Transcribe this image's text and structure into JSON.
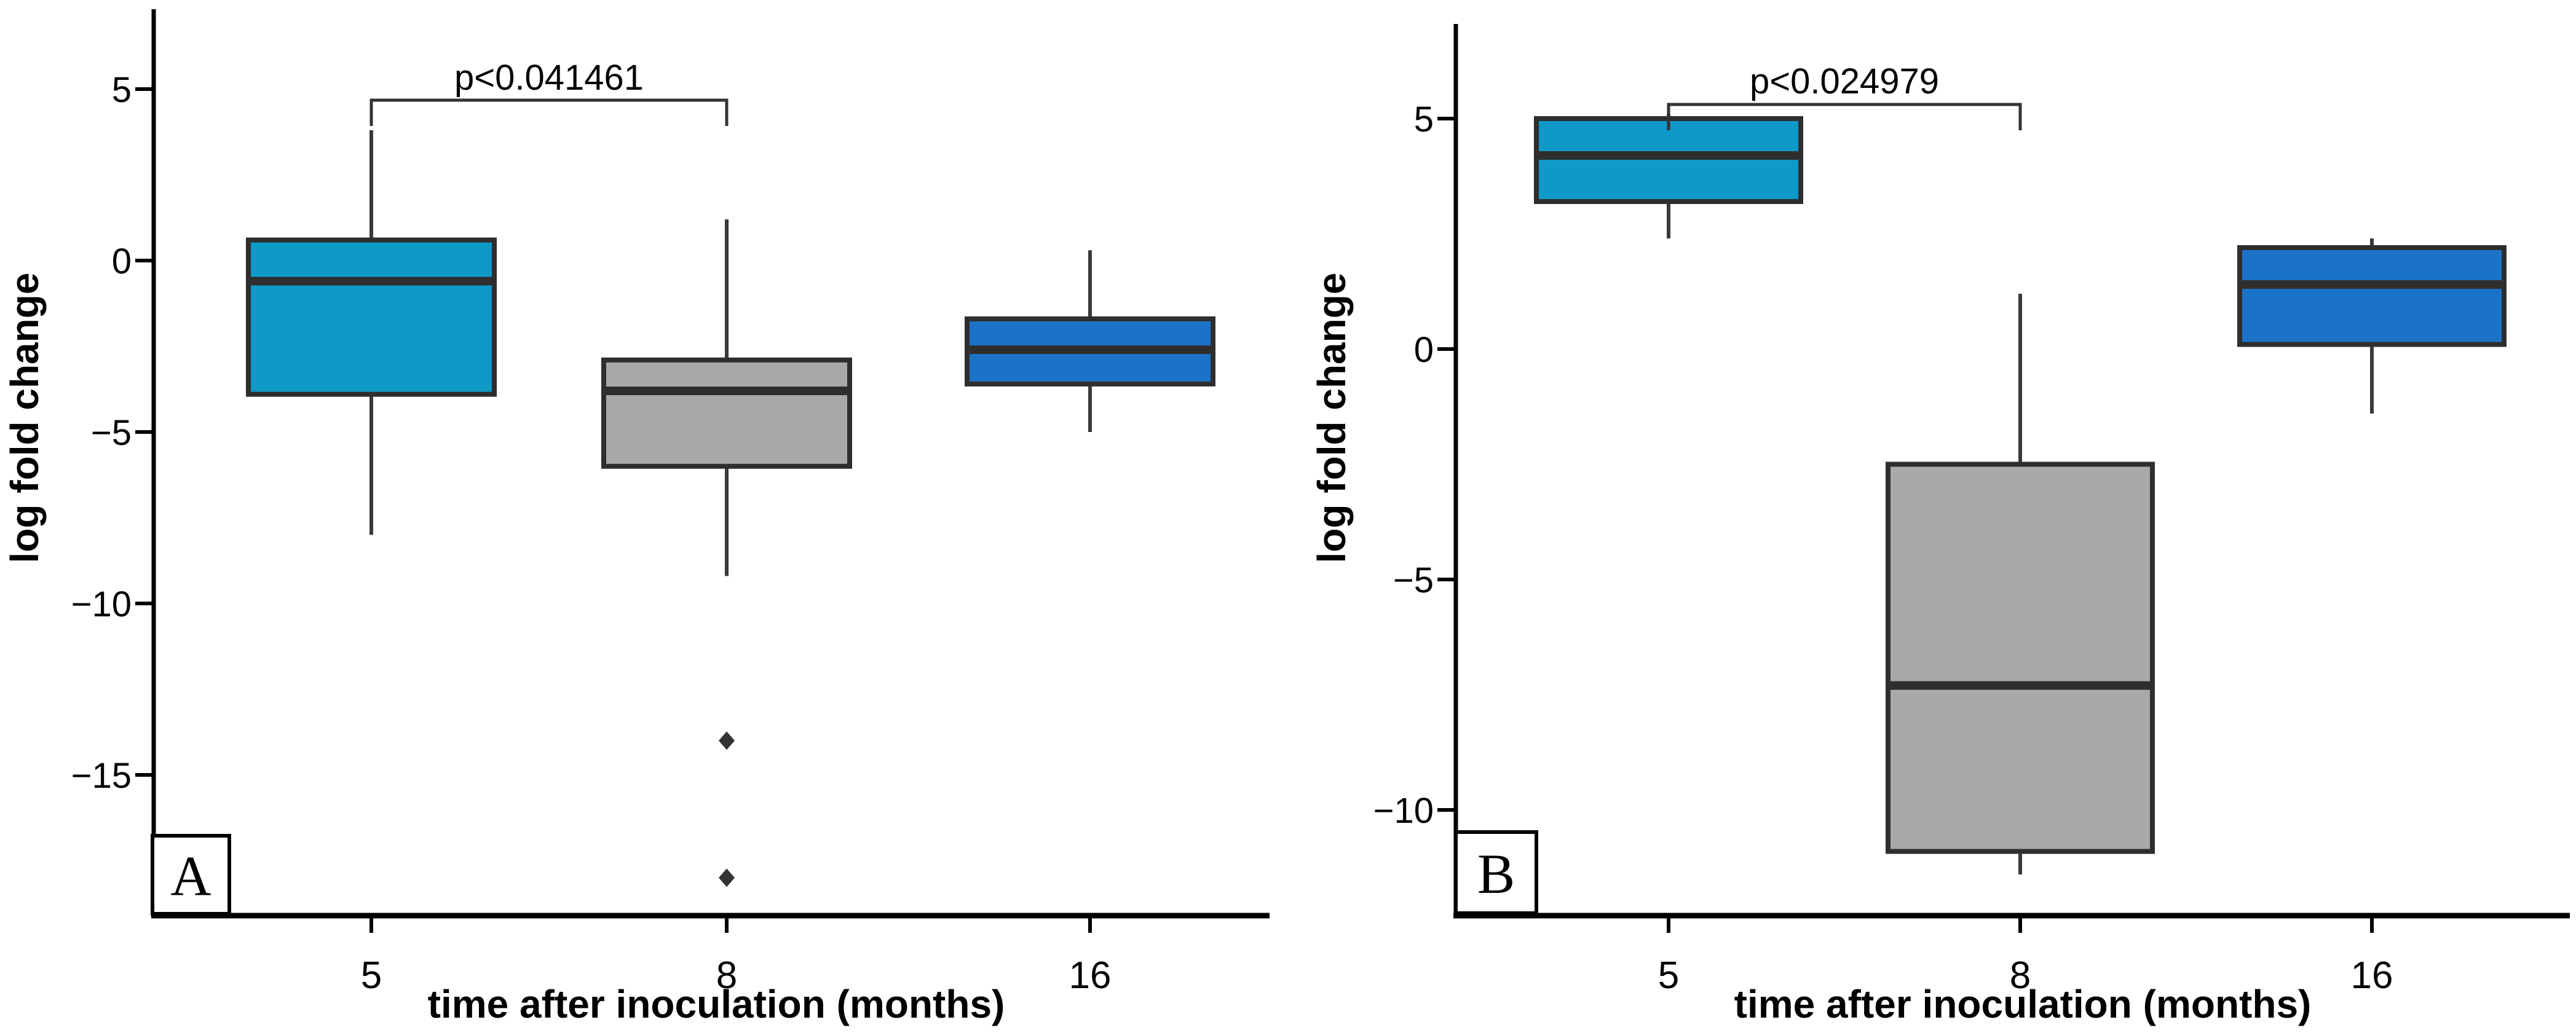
{
  "figure": {
    "background": "#ffffff",
    "box_fill_colors": {
      "5": "#0D9AC9",
      "8": "#A9A9A9",
      "16": "#1B73C7"
    },
    "stroke_colors": {
      "box_border": "#2E2E2E",
      "whisker": "#3A3A3A",
      "axis": "#000000",
      "bracket": "#333333",
      "p_text": "#111111"
    }
  },
  "chart_data": [
    {
      "type": "boxplot",
      "panel_label": "A",
      "p_annotation": "p<0.041461",
      "p_compared_groups": [
        "5",
        "8"
      ],
      "xlabel": "time after inoculation (months)",
      "ylabel": "log fold change",
      "categories": [
        "5",
        "8",
        "16"
      ],
      "y_ticks": [
        "5",
        "0",
        "−5",
        "−10",
        "−15"
      ],
      "y_tick_values": [
        5,
        0,
        -5,
        -10,
        -15
      ],
      "ylim": [
        -19.1,
        7.4
      ],
      "grid": "off",
      "legend": "none",
      "series": [
        {
          "category": "5",
          "color_key": "5",
          "whisker_low": -8.0,
          "q1": -3.9,
          "median": -0.6,
          "q3": 0.6,
          "whisker_high": 3.8,
          "outliers": []
        },
        {
          "category": "8",
          "color_key": "8",
          "whisker_low": -9.2,
          "q1": -6.0,
          "median": -3.8,
          "q3": -2.9,
          "whisker_high": 1.2,
          "outliers": [
            -14.0,
            -18.0
          ]
        },
        {
          "category": "16",
          "color_key": "16",
          "whisker_low": -5.0,
          "q1": -3.6,
          "median": -2.6,
          "q3": -1.7,
          "whisker_high": 0.3,
          "outliers": []
        }
      ]
    },
    {
      "type": "boxplot",
      "panel_label": "B",
      "p_annotation": "p<0.024979",
      "p_compared_groups": [
        "5",
        "8"
      ],
      "xlabel": "time after inoculation (months)",
      "ylabel": "log fold change",
      "categories": [
        "5",
        "8",
        "16"
      ],
      "y_ticks": [
        "5",
        "0",
        "−5",
        "−10"
      ],
      "y_tick_values": [
        5,
        0,
        -5,
        -10
      ],
      "ylim": [
        -12.3,
        7.2
      ],
      "grid": "off",
      "legend": "none",
      "series": [
        {
          "category": "5",
          "color_key": "5",
          "whisker_low": 2.4,
          "q1": 3.2,
          "median": 4.2,
          "q3": 5.0,
          "whisker_high": 5.1,
          "outliers": []
        },
        {
          "category": "8",
          "color_key": "8",
          "whisker_low": -11.4,
          "q1": -10.9,
          "median": -7.3,
          "q3": -2.5,
          "whisker_high": 1.2,
          "outliers": []
        },
        {
          "category": "16",
          "color_key": "16",
          "whisker_low": -1.4,
          "q1": 0.1,
          "median": 1.4,
          "q3": 2.2,
          "whisker_high": 2.4,
          "outliers": []
        }
      ]
    }
  ]
}
